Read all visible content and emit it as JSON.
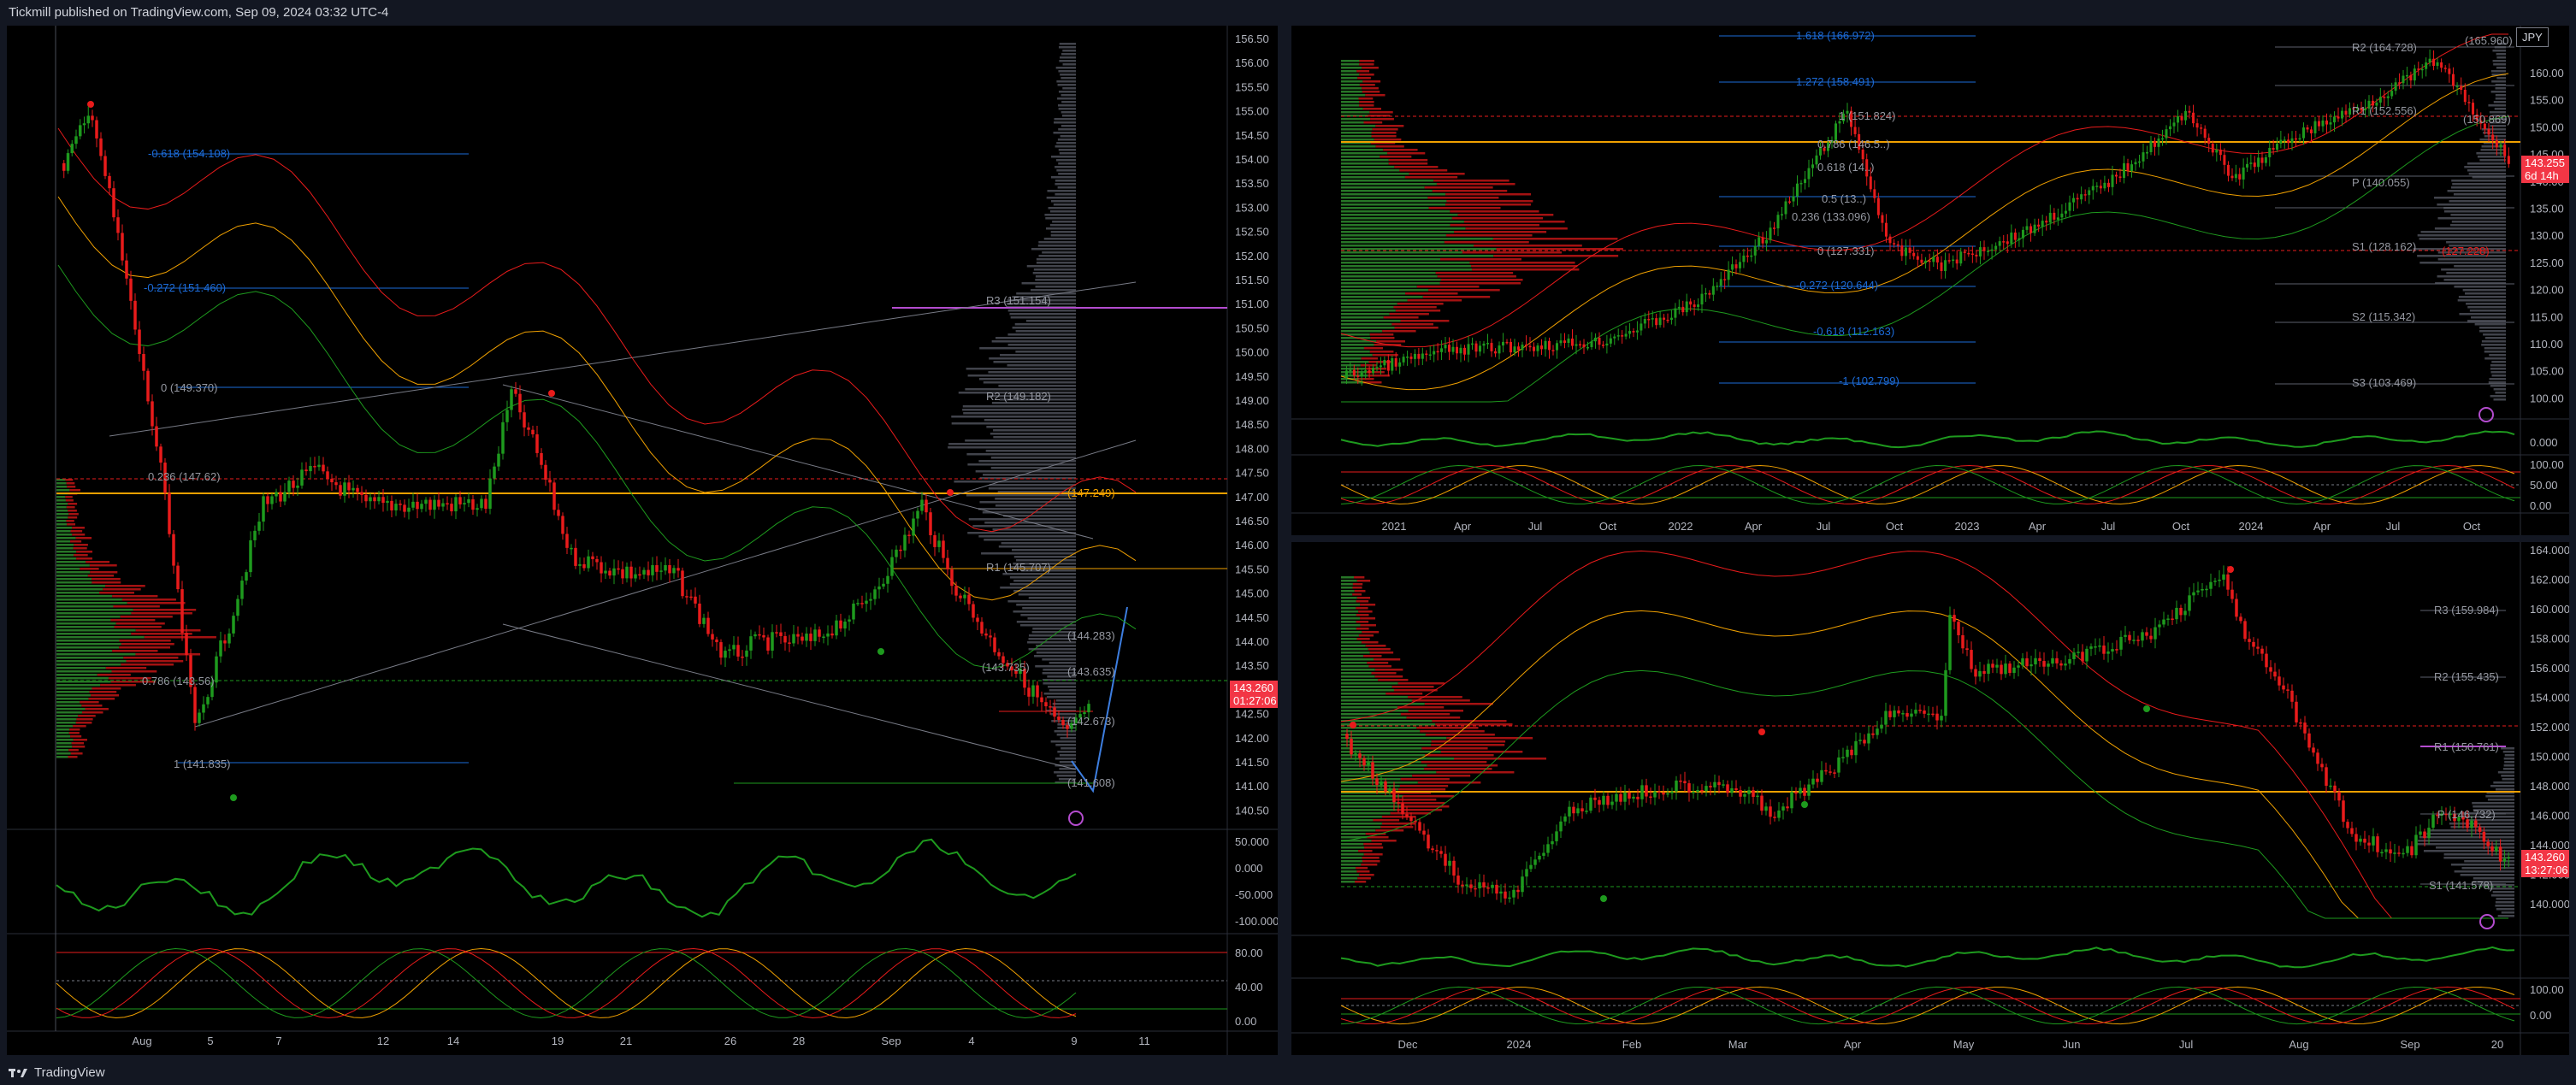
{
  "header": {
    "title": "Tickmill published on TradingView.com, Sep 09, 2024 03:32 UTC-4"
  },
  "footer": {
    "brand": "TradingView",
    "logo_icon": "tradingview-logo-icon"
  },
  "colors": {
    "up": "#1e8f1e",
    "down": "#e81b1b",
    "orange": "#f0a000",
    "pivot_magenta": "#b44ccf"
  },
  "left_chart": {
    "price_ticks": [
      "156.50",
      "156.00",
      "155.50",
      "155.00",
      "154.50",
      "154.00",
      "153.50",
      "153.00",
      "152.50",
      "152.00",
      "151.50",
      "151.00",
      "150.50",
      "150.00",
      "149.50",
      "149.00",
      "148.50",
      "148.00",
      "147.50",
      "147.00",
      "146.50",
      "146.00",
      "145.50",
      "145.00",
      "144.50",
      "144.00",
      "143.50",
      "143.00",
      "142.50",
      "142.00",
      "141.50",
      "141.00",
      "140.50"
    ],
    "time_ticks": [
      "Aug",
      "5",
      "7",
      "12",
      "14",
      "19",
      "21",
      "26",
      "28",
      "Sep",
      "4",
      "9",
      "11"
    ],
    "price_badge": {
      "price": "143.260",
      "countdown": "01:27:06"
    },
    "osc1_ticks": [
      "50.000",
      "0.000",
      "-50.000",
      "-100.000"
    ],
    "osc2_ticks": [
      "80.00",
      "40.00",
      "0.00"
    ],
    "fib_labels": [
      "-0.618 (154.108)",
      "-0.272 (151.460)",
      "0 (149.370)",
      "0.236 (147.62)",
      "0.786 (143.56)",
      "1 (141.835)"
    ],
    "pivot_labels": [
      "R3 (151.154)",
      "R2 (149.182)",
      "R1 (145.707)",
      "(147.249)",
      "(144.283)",
      "(143.635)",
      "(142.673)",
      "(143.735)",
      "(141.608)"
    ]
  },
  "top_right_chart": {
    "currency": "JPY",
    "price_ticks": [
      "160.00",
      "155.00",
      "150.00",
      "145.00",
      "140.00",
      "135.00",
      "130.00",
      "125.00",
      "120.00",
      "115.00",
      "110.00",
      "105.00",
      "100.00"
    ],
    "time_ticks": [
      "2021",
      "Apr",
      "Jul",
      "Oct",
      "2022",
      "Apr",
      "Jul",
      "Oct",
      "2023",
      "Apr",
      "Jul",
      "Oct",
      "2024",
      "Apr",
      "Jul",
      "Oct"
    ],
    "price_badge": {
      "price": "143.255",
      "countdown": "6d 14h"
    },
    "osc1_ticks": [
      "0.000"
    ],
    "osc2_ticks": [
      "100.00",
      "50.00",
      "0.00"
    ],
    "fib_labels": [
      "1.618 (166.972)",
      "1.272 (158.491)",
      "1 (151.824)",
      "0.786 (146.5..)",
      "0.618 (14..)",
      "0.5 (13..)",
      "0.236 (133.096)",
      "0 (127.331)",
      "-0.272 (120.644)",
      "-0.618 (112.163)",
      "-1 (102.799)"
    ],
    "pivot_labels": [
      "R2 (164.728)",
      "(165.960)",
      "R1 (152.556)",
      "(150.869)",
      "P (140.055)",
      "S1 (128.162)",
      "(127.228)",
      "S2 (115.342)",
      "S3 (103.469)"
    ]
  },
  "bottom_right_chart": {
    "price_ticks": [
      "164.000",
      "162.000",
      "160.000",
      "158.000",
      "156.000",
      "154.000",
      "152.000",
      "150.000",
      "148.000",
      "146.000",
      "144.000",
      "142.000",
      "140.000"
    ],
    "time_ticks": [
      "Dec",
      "2024",
      "Feb",
      "Mar",
      "Apr",
      "May",
      "Jun",
      "Jul",
      "Aug",
      "Sep",
      "20"
    ],
    "price_badge": {
      "price": "143.260",
      "countdown": "13:27:06"
    },
    "osc2_ticks": [
      "100.00",
      "0.00"
    ],
    "pivot_labels": [
      "R3 (159.984)",
      "R2 (155.435)",
      "R1 (150.761)",
      "P (146.732)",
      "S1 (141.578)"
    ]
  }
}
